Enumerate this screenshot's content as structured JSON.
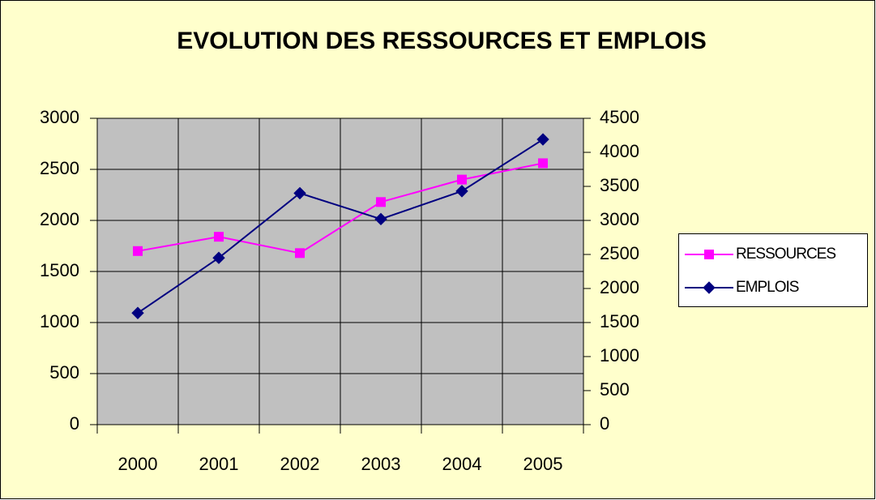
{
  "chart_data": {
    "type": "line",
    "title": "EVOLUTION DES RESSOURCES ET EMPLOIS",
    "categories": [
      "2000",
      "2001",
      "2002",
      "2003",
      "2004",
      "2005"
    ],
    "series": [
      {
        "name": "RESSOURCES",
        "color": "#ff00ff",
        "values": [
          1700,
          1840,
          1680,
          2180,
          2400,
          2560
        ]
      },
      {
        "name": "EMPLOIS",
        "color": "#000080",
        "axis": "y2",
        "values": [
          1640,
          2450,
          3400,
          3020,
          3430,
          4190
        ]
      }
    ],
    "ylim": [
      0,
      3000
    ],
    "yticks": [
      0,
      500,
      1000,
      1500,
      2000,
      2500,
      3000
    ],
    "y2lim": [
      0,
      4500
    ],
    "y2ticks": [
      0,
      500,
      1000,
      1500,
      2000,
      2500,
      3000,
      3500,
      4000,
      4500
    ],
    "grid": true,
    "legend": "right"
  }
}
